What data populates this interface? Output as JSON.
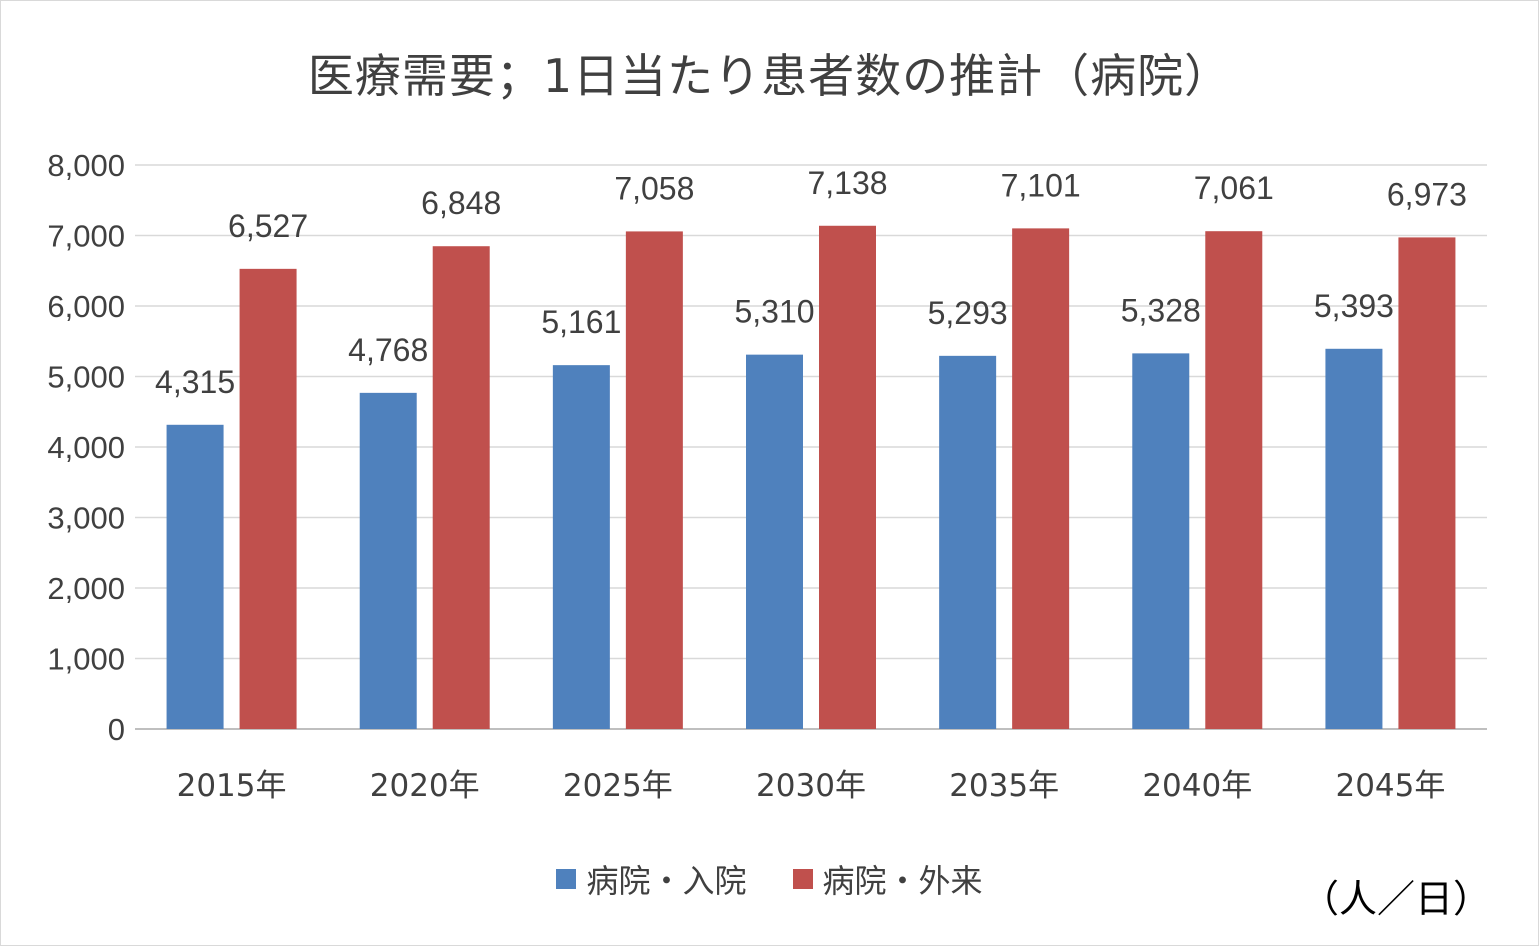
{
  "chart_data": {
    "type": "bar",
    "title": "医療需要；1日当たり患者数の推計（病院）",
    "categories": [
      "2015年",
      "2020年",
      "2025年",
      "2030年",
      "2035年",
      "2040年",
      "2045年"
    ],
    "series": [
      {
        "name": "病院・入院",
        "color": "#4f81bd",
        "values": [
          4315,
          4768,
          5161,
          5310,
          5293,
          5328,
          5393
        ],
        "labels": [
          "4,315",
          "4,768",
          "5,161",
          "5,310",
          "5,293",
          "5,328",
          "5,393"
        ]
      },
      {
        "name": "病院・外来",
        "color": "#c0504d",
        "values": [
          6527,
          6848,
          7058,
          7138,
          7101,
          7061,
          6973
        ],
        "labels": [
          "6,527",
          "6,848",
          "7,058",
          "7,138",
          "7,101",
          "7,061",
          "6,973"
        ]
      }
    ],
    "ylim": [
      0,
      8000
    ],
    "yticks": [
      0,
      1000,
      2000,
      3000,
      4000,
      5000,
      6000,
      7000,
      8000
    ],
    "ytick_labels": [
      "0",
      "1,000",
      "2,000",
      "3,000",
      "4,000",
      "5,000",
      "6,000",
      "7,000",
      "8,000"
    ],
    "grid": true,
    "legend_position": "bottom",
    "unit": "（人／日）"
  }
}
